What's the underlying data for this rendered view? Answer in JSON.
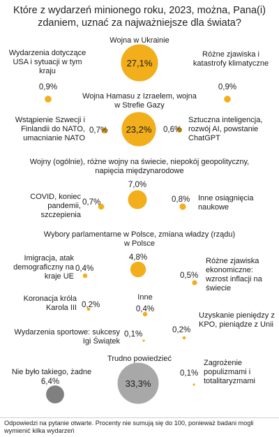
{
  "chart_data": {
    "type": "bubble",
    "title": "Które z wydarzeń minionego roku, 2023, można, Pana(i) zdaniem, uznać za najważniejsze dla świata?",
    "colors": {
      "primary": "#f2ae1b",
      "neutral": "#808080",
      "unsure": "#a8a8a8"
    },
    "items": [
      {
        "label": "Wojna w Ukrainie",
        "value": 27.1,
        "display": "27,1%",
        "color": "primary"
      },
      {
        "label": "Wydarzenia dotyczące USA i sytuacji w tym kraju",
        "value": 0.9,
        "display": "0,9%",
        "color": "primary"
      },
      {
        "label": "Różne zjawiska i katastrofy klimatyczne",
        "value": 0.9,
        "display": "0,9%",
        "color": "primary"
      },
      {
        "label": "Wojna Hamasu z Izraelem, wojna w Strefie Gazy",
        "value": 23.2,
        "display": "23,2%",
        "color": "primary"
      },
      {
        "label": "Wstąpienie Szwecji i Finlandii do NATO, umacnianie NATO",
        "value": 0.7,
        "display": "0,7%",
        "color": "primary"
      },
      {
        "label": "Sztuczna inteligencja, rozwój AI, powstanie ChatGPT",
        "value": 0.6,
        "display": "0,6%",
        "color": "primary"
      },
      {
        "label": "Wojny (ogólnie), różne wojny na świecie, niepokój geopolityczny, napięcia międzynarodowe",
        "value": 7.0,
        "display": "7,0%",
        "color": "primary"
      },
      {
        "label": "COVID, koniec pandemii, szczepienia",
        "value": 0.7,
        "display": "0,7%",
        "color": "primary"
      },
      {
        "label": "Inne osiągnięcia naukowe",
        "value": 0.8,
        "display": "0,8%",
        "color": "primary"
      },
      {
        "label": "Wybory parlamentarne w Polsce, zmiana władzy (rządu) w Polsce",
        "value": 4.8,
        "display": "4,8%",
        "color": "primary"
      },
      {
        "label": "Imigracja, atak demograficzny na kraje UE",
        "value": 0.4,
        "display": "0,4%",
        "color": "primary"
      },
      {
        "label": "Różne zjawiska ekonomiczne: wzrost inflacji na świecie",
        "value": 0.5,
        "display": "0,5%",
        "color": "primary"
      },
      {
        "label": "Koronacja króla Karola III",
        "value": 0.2,
        "display": "0,2%",
        "color": "primary"
      },
      {
        "label": "Inne",
        "value": 0.4,
        "display": "0,4%",
        "color": "primary"
      },
      {
        "label": "Uzyskanie pieniędzy z KPO, pieniądze z Unii",
        "value": 0.2,
        "display": "0,2%",
        "color": "primary"
      },
      {
        "label": "Wydarzenia sportowe: sukcesy Igi Świątek",
        "value": 0.1,
        "display": "0,1%",
        "color": "primary"
      },
      {
        "label": "Trudno powiedzieć",
        "value": 33.3,
        "display": "33,3%",
        "color": "unsure"
      },
      {
        "label": "Zagrożenie populizmami i totalitaryzmami",
        "value": 0.1,
        "display": "0,1%",
        "color": "primary"
      },
      {
        "label": "Nie było takiego, żadne",
        "value": 6.4,
        "display": "6,4%",
        "color": "neutral"
      }
    ]
  },
  "footnote": "Odpowiedzi na pytanie otwarte. Procenty nie sumują się do 100, ponieważ badani mogli wymienić kilka wydarzeń"
}
